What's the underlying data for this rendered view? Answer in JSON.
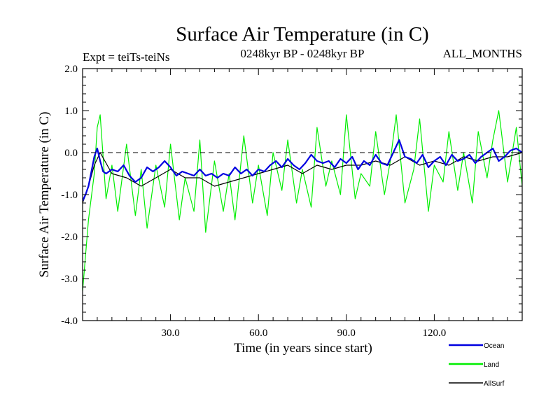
{
  "chart_data": {
    "type": "line",
    "title": "Surface Air Temperature (in C)",
    "subtitle_left": "Expt = teiTs-teiNs",
    "subtitle_center": "0248kyr BP - 0248kyr BP",
    "subtitle_right": "ALL_MONTHS",
    "xlabel": "Time (in years since start)",
    "ylabel": "Surface Air Temperature (in C)",
    "xlim": [
      0,
      150
    ],
    "ylim": [
      -4.0,
      2.0
    ],
    "x_ticks": [
      30,
      60,
      90,
      120
    ],
    "x_tick_labels": [
      "30.0",
      "60.0",
      "90.0",
      "120.0"
    ],
    "y_ticks": [
      -4,
      -3,
      -2,
      -1,
      0,
      1,
      2
    ],
    "y_tick_labels": [
      "-4.0",
      "-3.0",
      "-2.0",
      "-1.0",
      "0.0",
      "1.0",
      "2.0"
    ],
    "reference_line": 0.0,
    "series": [
      {
        "name": "Land",
        "color": "#00ee00",
        "x": [
          0,
          2,
          4,
          5,
          6,
          8,
          10,
          12,
          15,
          18,
          20,
          22,
          25,
          28,
          30,
          33,
          35,
          38,
          40,
          42,
          45,
          48,
          50,
          52,
          55,
          58,
          60,
          63,
          65,
          68,
          70,
          73,
          75,
          78,
          80,
          83,
          85,
          88,
          90,
          93,
          95,
          98,
          100,
          103,
          105,
          107,
          110,
          113,
          115,
          118,
          120,
          123,
          125,
          128,
          130,
          133,
          135,
          138,
          140,
          142,
          145,
          148,
          150
        ],
        "values": [
          -3.3,
          -1.6,
          -0.5,
          0.6,
          0.9,
          -1.1,
          -0.3,
          -1.4,
          0.2,
          -1.5,
          -0.4,
          -1.8,
          -0.3,
          -1.3,
          0.2,
          -1.6,
          -0.6,
          -1.4,
          0.3,
          -1.9,
          -0.2,
          -1.4,
          -0.5,
          -1.6,
          0.4,
          -1.2,
          -0.3,
          -1.5,
          0.0,
          -0.9,
          0.3,
          -1.2,
          -0.4,
          -1.3,
          0.6,
          -0.8,
          -0.2,
          -1.0,
          0.9,
          -1.1,
          -0.5,
          -0.8,
          0.5,
          -1.0,
          -0.2,
          0.9,
          -1.2,
          -0.4,
          0.8,
          -1.4,
          -0.3,
          -0.7,
          0.5,
          -0.9,
          0.0,
          -1.2,
          0.5,
          -0.6,
          0.3,
          1.0,
          -0.7,
          0.6,
          -0.8
        ]
      },
      {
        "name": "AllSurf",
        "color": "#000000",
        "x": [
          0,
          2,
          4,
          6,
          10,
          15,
          20,
          25,
          30,
          35,
          40,
          45,
          50,
          55,
          60,
          65,
          70,
          75,
          80,
          85,
          90,
          95,
          100,
          105,
          110,
          115,
          120,
          125,
          130,
          135,
          140,
          145,
          150
        ],
        "values": [
          -1.2,
          -0.8,
          -0.3,
          0.0,
          -0.5,
          -0.6,
          -0.8,
          -0.6,
          -0.4,
          -0.6,
          -0.6,
          -0.8,
          -0.7,
          -0.6,
          -0.5,
          -0.4,
          -0.3,
          -0.5,
          -0.3,
          -0.4,
          -0.3,
          -0.3,
          -0.2,
          -0.3,
          -0.1,
          -0.3,
          -0.2,
          -0.3,
          -0.1,
          -0.2,
          -0.1,
          -0.1,
          0.0
        ]
      },
      {
        "name": "Ocean",
        "color": "#0000e0",
        "x": [
          0,
          1,
          2,
          3,
          4,
          5,
          6,
          7,
          8,
          10,
          12,
          14,
          16,
          18,
          20,
          22,
          24,
          26,
          28,
          30,
          32,
          34,
          36,
          38,
          40,
          42,
          44,
          46,
          48,
          50,
          52,
          54,
          56,
          58,
          60,
          62,
          64,
          66,
          68,
          70,
          72,
          74,
          76,
          78,
          80,
          82,
          84,
          86,
          88,
          90,
          92,
          94,
          96,
          98,
          100,
          102,
          104,
          106,
          108,
          110,
          112,
          114,
          116,
          118,
          120,
          122,
          124,
          126,
          128,
          130,
          132,
          134,
          136,
          138,
          140,
          142,
          144,
          146,
          148,
          150
        ],
        "values": [
          -1.15,
          -1.0,
          -0.8,
          -0.45,
          -0.1,
          0.1,
          -0.2,
          -0.45,
          -0.5,
          -0.4,
          -0.45,
          -0.3,
          -0.55,
          -0.7,
          -0.6,
          -0.35,
          -0.45,
          -0.35,
          -0.2,
          -0.35,
          -0.55,
          -0.45,
          -0.5,
          -0.55,
          -0.4,
          -0.55,
          -0.5,
          -0.6,
          -0.5,
          -0.55,
          -0.35,
          -0.5,
          -0.4,
          -0.55,
          -0.4,
          -0.45,
          -0.3,
          -0.2,
          -0.35,
          -0.15,
          -0.3,
          -0.4,
          -0.25,
          -0.05,
          -0.2,
          -0.25,
          -0.2,
          -0.35,
          -0.15,
          -0.25,
          -0.1,
          -0.4,
          -0.2,
          -0.3,
          -0.05,
          -0.25,
          -0.3,
          0.0,
          0.3,
          -0.1,
          -0.15,
          -0.25,
          -0.05,
          -0.35,
          -0.2,
          -0.1,
          -0.3,
          -0.05,
          -0.2,
          -0.15,
          -0.05,
          -0.25,
          -0.1,
          0.0,
          0.1,
          -0.2,
          -0.1,
          0.05,
          0.1,
          0.0
        ]
      }
    ],
    "legend": [
      {
        "name": "Ocean",
        "color": "#0000e0"
      },
      {
        "name": "Land",
        "color": "#00ee00"
      },
      {
        "name": "AllSurf",
        "color": "#000000"
      }
    ]
  }
}
